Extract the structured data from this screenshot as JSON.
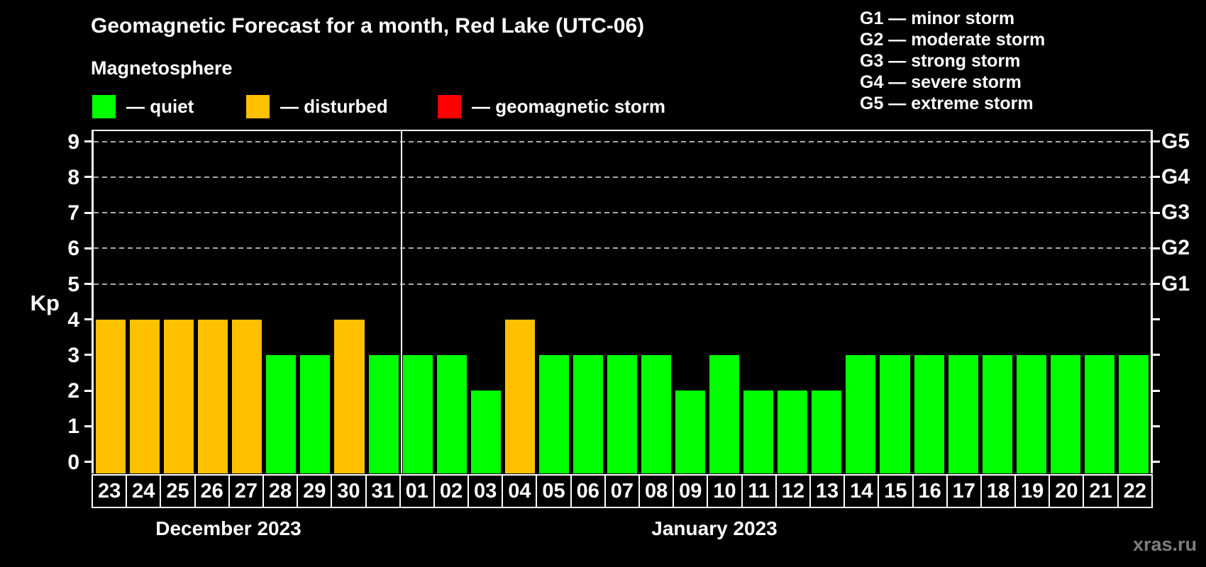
{
  "title": "Geomagnetic Forecast for a month, Red Lake (UTC-06)",
  "subtitle": "Magnetosphere",
  "legend": {
    "items": [
      {
        "status": "quiet",
        "label": "— quiet",
        "color": "#00ff00"
      },
      {
        "status": "disturbed",
        "label": "— disturbed",
        "color": "#ffc000"
      },
      {
        "status": "storm",
        "label": "— geomagnetic storm",
        "color": "#ff0000"
      }
    ]
  },
  "g_scale_legend": [
    "G1 — minor storm",
    "G2 — moderate storm",
    "G3 — strong storm",
    "G4 — severe storm",
    "G5 — extreme storm"
  ],
  "axis": {
    "y_label": "Kp",
    "y_ticks": [
      0,
      1,
      2,
      3,
      4,
      5,
      6,
      7,
      8,
      9
    ],
    "gridline_levels": [
      5,
      6,
      7,
      8,
      9
    ],
    "right_labels": [
      {
        "kp": 5,
        "label": "G1"
      },
      {
        "kp": 6,
        "label": "G2"
      },
      {
        "kp": 7,
        "label": "G3"
      },
      {
        "kp": 8,
        "label": "G4"
      },
      {
        "kp": 9,
        "label": "G5"
      }
    ]
  },
  "chart_data": {
    "type": "bar",
    "title": "Geomagnetic Forecast for a month, Red Lake (UTC-06)",
    "ylabel": "Kp",
    "ylim": [
      0,
      9.3
    ],
    "grid": "dashed horizontal lines at Kp 5-9 (G1-G5)",
    "legend_position": "top",
    "categories": [
      "23",
      "24",
      "25",
      "26",
      "27",
      "28",
      "29",
      "30",
      "31",
      "01",
      "02",
      "03",
      "04",
      "05",
      "06",
      "07",
      "08",
      "09",
      "10",
      "11",
      "12",
      "13",
      "14",
      "15",
      "16",
      "17",
      "18",
      "19",
      "20",
      "21",
      "22"
    ],
    "values": [
      4,
      4,
      4,
      4,
      4,
      3,
      3,
      4,
      3,
      3,
      3,
      2,
      4,
      3,
      3,
      3,
      3,
      2,
      3,
      2,
      2,
      2,
      3,
      3,
      3,
      3,
      3,
      3,
      3,
      3,
      3
    ],
    "statuses": [
      "disturbed",
      "disturbed",
      "disturbed",
      "disturbed",
      "disturbed",
      "quiet",
      "quiet",
      "disturbed",
      "quiet",
      "quiet",
      "quiet",
      "quiet",
      "disturbed",
      "quiet",
      "quiet",
      "quiet",
      "quiet",
      "quiet",
      "quiet",
      "quiet",
      "quiet",
      "quiet",
      "quiet",
      "quiet",
      "quiet",
      "quiet",
      "quiet",
      "quiet",
      "quiet",
      "quiet",
      "quiet"
    ],
    "months": [
      {
        "label": "December 2023",
        "span": 9
      },
      {
        "label": "January 2023",
        "span": 22
      }
    ]
  },
  "watermark": "xras.ru"
}
